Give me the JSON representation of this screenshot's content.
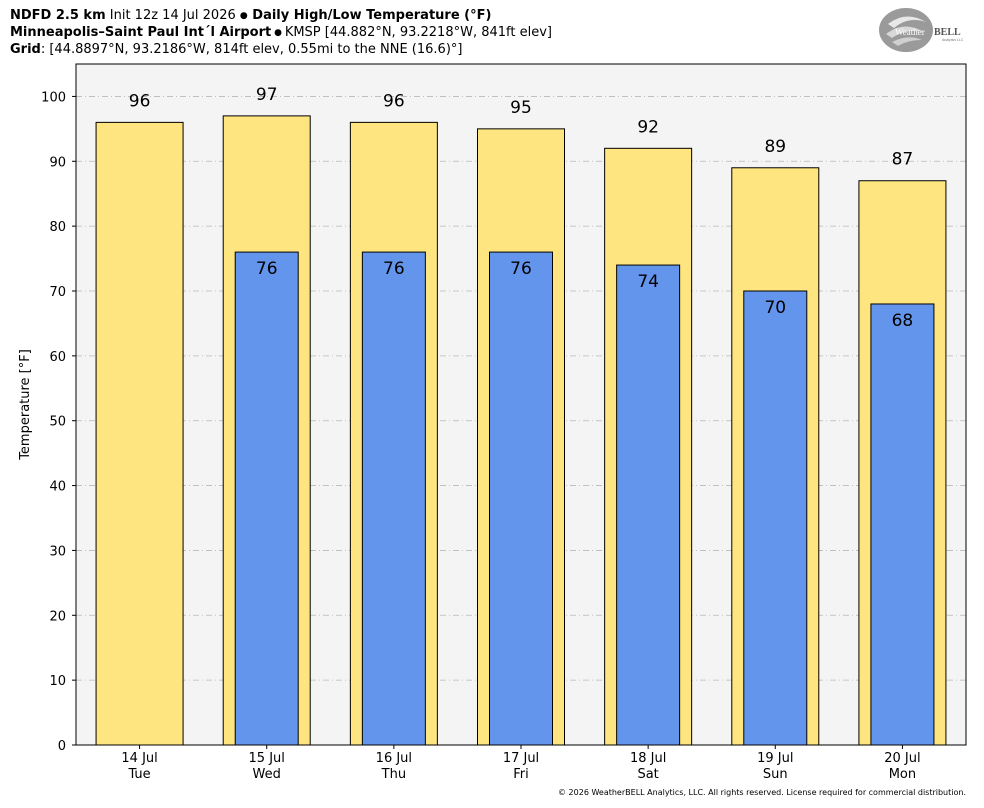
{
  "header": {
    "line1_bold_a": "NDFD 2.5 km",
    "line1_normal": " Init 12z 14 Jul 2026 ",
    "line1_bullet": "●",
    "line1_bold_b": " Daily High/Low Temperature (°F)",
    "line2_bold": "Minneapolis–Saint Paul Int´l Airport",
    "line2_bullet": " ● ",
    "line2_normal": "KMSP [44.882°N, 93.2218°W, 841ft elev]",
    "line3_bold": "Grid",
    "line3_normal": ": [44.8897°N, 93.2186°W, 814ft elev, 0.55mi to the NNE (16.6)°]"
  },
  "logo": {
    "text_a": "Weather",
    "text_b": "BELL",
    "sub": "Analytics LLC"
  },
  "copyright": "© 2026 WeatherBELL Analytics, LLC. All rights reserved. License required for commercial distribution.",
  "colors": {
    "high_bar": "#FFE57F",
    "low_bar": "#6495ED",
    "plot_bg": "#F5F4F5",
    "grid": "#B8B8B8"
  },
  "chart_data": {
    "type": "bar",
    "ylabel": "Temperature [°F]",
    "xlabel": "",
    "ylim": [
      0,
      105
    ],
    "yticks": [
      0,
      10,
      20,
      30,
      40,
      50,
      60,
      70,
      80,
      90,
      100
    ],
    "grid": true,
    "categories": [
      {
        "date": "14 Jul",
        "day": "Tue"
      },
      {
        "date": "15 Jul",
        "day": "Wed"
      },
      {
        "date": "16 Jul",
        "day": "Thu"
      },
      {
        "date": "17 Jul",
        "day": "Fri"
      },
      {
        "date": "18 Jul",
        "day": "Sat"
      },
      {
        "date": "19 Jul",
        "day": "Sun"
      },
      {
        "date": "20 Jul",
        "day": "Mon"
      }
    ],
    "series": [
      {
        "values": [
          96,
          97,
          96,
          95,
          92,
          89,
          87
        ]
      },
      {
        "values": [
          null,
          76,
          76,
          76,
          74,
          70,
          68
        ]
      }
    ]
  }
}
